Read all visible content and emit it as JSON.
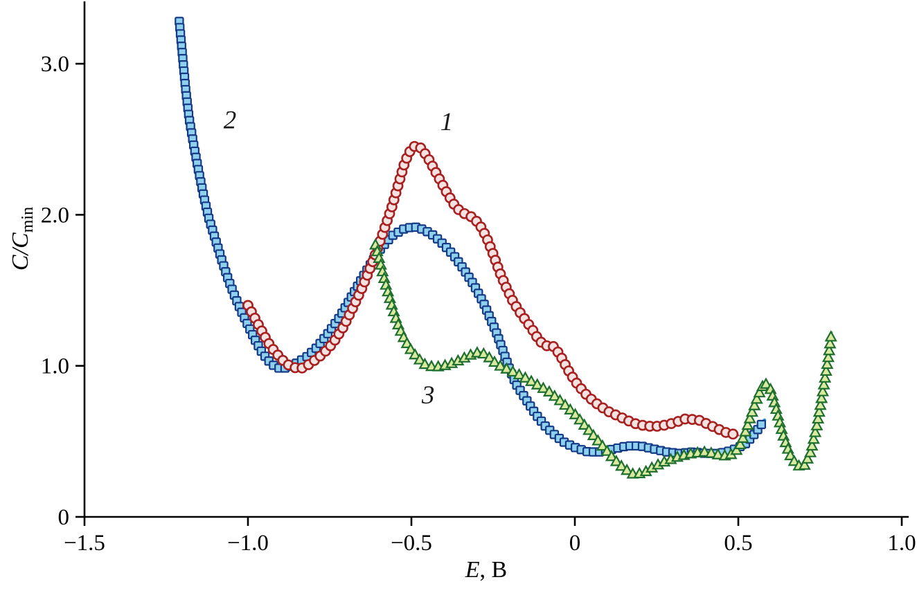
{
  "chart_data": {
    "type": "scatter",
    "title": "",
    "xlabel_parts": {
      "italic": "E",
      "rest": ", В"
    },
    "ylabel_parts": {
      "main": "C/C",
      "sub": "min"
    },
    "xlim": [
      -1.5,
      1.0
    ],
    "ylim": [
      0,
      3.42
    ],
    "grid": "off",
    "legend": "none",
    "x_ticks": [
      -1.5,
      -1.0,
      -0.5,
      0,
      0.5,
      1.0
    ],
    "x_tick_labels": [
      "−1.5",
      "−1.0",
      "−0.5",
      "0",
      "0.5",
      "1.0"
    ],
    "y_ticks": [
      0,
      1.0,
      2.0,
      3.0
    ],
    "y_tick_labels": [
      "0",
      "1.0",
      "2.0",
      "3.0"
    ],
    "annotations": [
      {
        "text": "1",
        "x": -0.392,
        "y": 2.6
      },
      {
        "text": "2",
        "x": -1.055,
        "y": 2.61
      },
      {
        "text": "3",
        "x": -0.449,
        "y": 0.79
      }
    ],
    "series": [
      {
        "name": "2",
        "marker": "square",
        "stroke": "#143a85",
        "fill": "#8fd0ef",
        "line": "#1e8fd0",
        "points": [
          [
            -1.21,
            3.28
          ],
          [
            -1.2,
            3.05
          ],
          [
            -1.19,
            2.82
          ],
          [
            -1.18,
            2.64
          ],
          [
            -1.165,
            2.45
          ],
          [
            -1.15,
            2.28
          ],
          [
            -1.135,
            2.12
          ],
          [
            -1.12,
            1.98
          ],
          [
            -1.1,
            1.84
          ],
          [
            -1.08,
            1.7
          ],
          [
            -1.06,
            1.57
          ],
          [
            -1.04,
            1.46
          ],
          [
            -1.02,
            1.36
          ],
          [
            -1.0,
            1.27
          ],
          [
            -0.98,
            1.18
          ],
          [
            -0.96,
            1.1
          ],
          [
            -0.94,
            1.04
          ],
          [
            -0.92,
            1.0
          ],
          [
            -0.9,
            0.98
          ],
          [
            -0.875,
            0.99
          ],
          [
            -0.85,
            1.02
          ],
          [
            -0.82,
            1.06
          ],
          [
            -0.79,
            1.12
          ],
          [
            -0.76,
            1.2
          ],
          [
            -0.72,
            1.32
          ],
          [
            -0.68,
            1.47
          ],
          [
            -0.64,
            1.62
          ],
          [
            -0.6,
            1.76
          ],
          [
            -0.56,
            1.86
          ],
          [
            -0.52,
            1.91
          ],
          [
            -0.49,
            1.92
          ],
          [
            -0.46,
            1.9
          ],
          [
            -0.43,
            1.86
          ],
          [
            -0.4,
            1.8
          ],
          [
            -0.37,
            1.73
          ],
          [
            -0.34,
            1.64
          ],
          [
            -0.31,
            1.54
          ],
          [
            -0.28,
            1.42
          ],
          [
            -0.26,
            1.32
          ],
          [
            -0.24,
            1.22
          ],
          [
            -0.22,
            1.1
          ],
          [
            -0.2,
            0.98
          ],
          [
            -0.18,
            0.88
          ],
          [
            -0.15,
            0.78
          ],
          [
            -0.12,
            0.68
          ],
          [
            -0.09,
            0.6
          ],
          [
            -0.06,
            0.54
          ],
          [
            -0.03,
            0.49
          ],
          [
            0.0,
            0.46
          ],
          [
            0.04,
            0.43
          ],
          [
            0.08,
            0.43
          ],
          [
            0.12,
            0.45
          ],
          [
            0.16,
            0.47
          ],
          [
            0.2,
            0.47
          ],
          [
            0.24,
            0.45
          ],
          [
            0.28,
            0.43
          ],
          [
            0.32,
            0.42
          ],
          [
            0.36,
            0.43
          ],
          [
            0.4,
            0.42
          ],
          [
            0.44,
            0.42
          ],
          [
            0.48,
            0.44
          ],
          [
            0.52,
            0.48
          ],
          [
            0.55,
            0.55
          ],
          [
            0.58,
            0.64
          ]
        ]
      },
      {
        "name": "1",
        "marker": "circle",
        "stroke": "#a81f1f",
        "fill": "#f6e2e0",
        "line": "#c85050",
        "points": [
          [
            -1.0,
            1.4
          ],
          [
            -0.98,
            1.32
          ],
          [
            -0.96,
            1.24
          ],
          [
            -0.94,
            1.16
          ],
          [
            -0.92,
            1.1
          ],
          [
            -0.9,
            1.05
          ],
          [
            -0.88,
            1.01
          ],
          [
            -0.86,
            0.99
          ],
          [
            -0.84,
            0.98
          ],
          [
            -0.82,
            1.0
          ],
          [
            -0.8,
            1.03
          ],
          [
            -0.77,
            1.08
          ],
          [
            -0.74,
            1.15
          ],
          [
            -0.71,
            1.25
          ],
          [
            -0.68,
            1.38
          ],
          [
            -0.65,
            1.52
          ],
          [
            -0.62,
            1.68
          ],
          [
            -0.59,
            1.86
          ],
          [
            -0.56,
            2.05
          ],
          [
            -0.54,
            2.2
          ],
          [
            -0.52,
            2.35
          ],
          [
            -0.5,
            2.44
          ],
          [
            -0.485,
            2.46
          ],
          [
            -0.47,
            2.44
          ],
          [
            -0.45,
            2.38
          ],
          [
            -0.43,
            2.3
          ],
          [
            -0.41,
            2.22
          ],
          [
            -0.39,
            2.14
          ],
          [
            -0.37,
            2.07
          ],
          [
            -0.35,
            2.02
          ],
          [
            -0.33,
            2.0
          ],
          [
            -0.31,
            1.98
          ],
          [
            -0.29,
            1.93
          ],
          [
            -0.27,
            1.85
          ],
          [
            -0.25,
            1.74
          ],
          [
            -0.23,
            1.62
          ],
          [
            -0.21,
            1.52
          ],
          [
            -0.19,
            1.43
          ],
          [
            -0.17,
            1.36
          ],
          [
            -0.15,
            1.3
          ],
          [
            -0.13,
            1.24
          ],
          [
            -0.11,
            1.17
          ],
          [
            -0.09,
            1.13
          ],
          [
            -0.075,
            1.14
          ],
          [
            -0.06,
            1.12
          ],
          [
            -0.04,
            1.05
          ],
          [
            -0.02,
            0.97
          ],
          [
            0.0,
            0.9
          ],
          [
            0.03,
            0.82
          ],
          [
            0.06,
            0.76
          ],
          [
            0.1,
            0.7
          ],
          [
            0.14,
            0.66
          ],
          [
            0.18,
            0.62
          ],
          [
            0.22,
            0.6
          ],
          [
            0.26,
            0.6
          ],
          [
            0.3,
            0.62
          ],
          [
            0.34,
            0.65
          ],
          [
            0.38,
            0.64
          ],
          [
            0.42,
            0.6
          ],
          [
            0.46,
            0.56
          ],
          [
            0.5,
            0.54
          ]
        ]
      },
      {
        "name": "3",
        "marker": "triangle",
        "stroke": "#1e6f2e",
        "fill": "#d9e9a0",
        "line": "#5cb347",
        "points": [
          [
            -0.61,
            1.8
          ],
          [
            -0.595,
            1.68
          ],
          [
            -0.58,
            1.55
          ],
          [
            -0.565,
            1.44
          ],
          [
            -0.55,
            1.33
          ],
          [
            -0.535,
            1.24
          ],
          [
            -0.52,
            1.17
          ],
          [
            -0.5,
            1.1
          ],
          [
            -0.48,
            1.05
          ],
          [
            -0.46,
            1.01
          ],
          [
            -0.43,
            0.99
          ],
          [
            -0.4,
            1.0
          ],
          [
            -0.37,
            1.02
          ],
          [
            -0.34,
            1.05
          ],
          [
            -0.31,
            1.08
          ],
          [
            -0.29,
            1.09
          ],
          [
            -0.27,
            1.07
          ],
          [
            -0.25,
            1.03
          ],
          [
            -0.23,
            1.0
          ],
          [
            -0.2,
            0.97
          ],
          [
            -0.16,
            0.93
          ],
          [
            -0.12,
            0.88
          ],
          [
            -0.08,
            0.83
          ],
          [
            -0.04,
            0.76
          ],
          [
            0.0,
            0.68
          ],
          [
            0.04,
            0.58
          ],
          [
            0.08,
            0.48
          ],
          [
            0.12,
            0.38
          ],
          [
            0.15,
            0.32
          ],
          [
            0.18,
            0.28
          ],
          [
            0.21,
            0.29
          ],
          [
            0.24,
            0.33
          ],
          [
            0.28,
            0.37
          ],
          [
            0.32,
            0.4
          ],
          [
            0.36,
            0.42
          ],
          [
            0.4,
            0.43
          ],
          [
            0.44,
            0.41
          ],
          [
            0.47,
            0.4
          ],
          [
            0.5,
            0.45
          ],
          [
            0.52,
            0.55
          ],
          [
            0.54,
            0.68
          ],
          [
            0.56,
            0.8
          ],
          [
            0.58,
            0.89
          ],
          [
            0.6,
            0.84
          ],
          [
            0.62,
            0.68
          ],
          [
            0.64,
            0.52
          ],
          [
            0.66,
            0.4
          ],
          [
            0.68,
            0.34
          ],
          [
            0.7,
            0.33
          ],
          [
            0.72,
            0.42
          ],
          [
            0.74,
            0.6
          ],
          [
            0.76,
            0.85
          ],
          [
            0.775,
            1.05
          ],
          [
            0.785,
            1.22
          ]
        ]
      }
    ]
  }
}
